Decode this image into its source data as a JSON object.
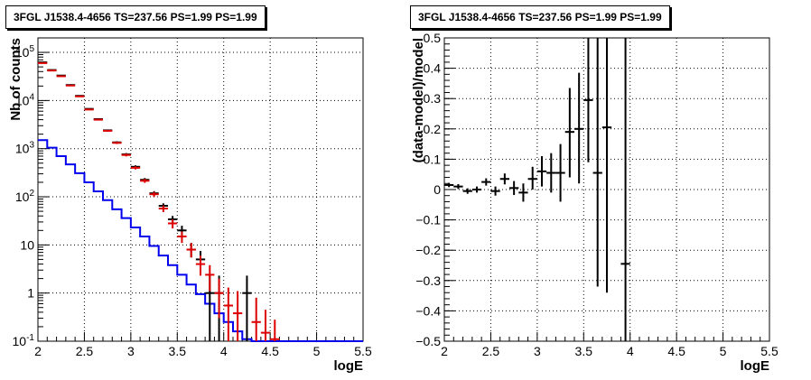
{
  "chart_data": [
    {
      "type": "histogram",
      "title": "3FGL J1538.4-4656 TS=237.56 PS=1.99 PS=1.99",
      "xlabel": "logE",
      "ylabel": "Nb of counts",
      "xlim": [
        2,
        5.5
      ],
      "ylim": [
        0.1,
        200000
      ],
      "yscale": "log",
      "grid": true,
      "xticks": [
        "2",
        "2.5",
        "3",
        "3.5",
        "4",
        "4.5",
        "5",
        "5.5"
      ],
      "yticks": [
        {
          "v": 0.1,
          "l": "10",
          "e": "-1"
        },
        {
          "v": 1,
          "l": "1",
          "e": ""
        },
        {
          "v": 10,
          "l": "10",
          "e": ""
        },
        {
          "v": 100,
          "l": "10",
          "e": "2"
        },
        {
          "v": 1000,
          "l": "10",
          "e": "3"
        },
        {
          "v": 10000,
          "l": "10",
          "e": "4"
        },
        {
          "v": 100000,
          "l": "10",
          "e": "5"
        }
      ],
      "bin_edges": [
        2.0,
        2.1,
        2.2,
        2.3,
        2.4,
        2.5,
        2.6,
        2.7,
        2.8,
        2.9,
        3.0,
        3.1,
        3.2,
        3.3,
        3.4,
        3.5,
        3.6,
        3.7,
        3.8,
        3.9,
        4.0,
        4.1,
        4.2,
        4.3,
        4.4,
        4.5,
        4.6,
        4.7,
        4.8,
        4.9,
        5.0,
        5.1,
        5.2,
        5.3,
        5.4,
        5.5
      ],
      "series": [
        {
          "color": "#0000ee",
          "style": "step",
          "values": [
            1500,
            1050,
            700,
            470,
            310,
            200,
            130,
            85,
            55,
            36,
            23,
            15,
            9.5,
            6,
            3.8,
            2.4,
            1.5,
            0.95,
            0.6,
            0.38,
            0.25,
            0.16,
            0.11,
            0.1,
            0.1,
            0.1,
            0.1,
            0.1,
            0.1,
            0.1,
            0.1,
            0.1,
            0.1,
            0.1,
            0.1
          ]
        },
        {
          "color": "#000000",
          "style": "errorbar",
          "points": [
            {
              "x": 2.05,
              "y": 62000,
              "lo": 61000,
              "hi": 63000
            },
            {
              "x": 2.15,
              "y": 43000,
              "lo": 42200,
              "hi": 43800
            },
            {
              "x": 2.25,
              "y": 33000,
              "lo": 32300,
              "hi": 33700
            },
            {
              "x": 2.35,
              "y": 21000,
              "lo": 20500,
              "hi": 21500
            },
            {
              "x": 2.45,
              "y": 12500,
              "lo": 12200,
              "hi": 12800
            },
            {
              "x": 2.55,
              "y": 6700,
              "lo": 6500,
              "hi": 6900
            },
            {
              "x": 2.65,
              "y": 4100,
              "lo": 3950,
              "hi": 4250
            },
            {
              "x": 2.75,
              "y": 2400,
              "lo": 2300,
              "hi": 2500
            },
            {
              "x": 2.85,
              "y": 1350,
              "lo": 1280,
              "hi": 1420
            },
            {
              "x": 2.95,
              "y": 760,
              "lo": 710,
              "hi": 810
            },
            {
              "x": 3.05,
              "y": 420,
              "lo": 390,
              "hi": 450
            },
            {
              "x": 3.15,
              "y": 225,
              "lo": 205,
              "hi": 245
            },
            {
              "x": 3.25,
              "y": 118,
              "lo": 105,
              "hi": 131
            },
            {
              "x": 3.35,
              "y": 65,
              "lo": 57,
              "hi": 73
            },
            {
              "x": 3.45,
              "y": 34,
              "lo": 28,
              "hi": 40
            },
            {
              "x": 3.55,
              "y": 20,
              "lo": 16,
              "hi": 25
            },
            {
              "x": 3.65,
              "y": 8,
              "lo": 5.5,
              "hi": 11
            },
            {
              "x": 3.75,
              "y": 5,
              "lo": 3,
              "hi": 7.5
            },
            {
              "x": 3.85,
              "y": 1,
              "lo": 0.1,
              "hi": 2.3
            },
            {
              "x": 3.95,
              "y": 1,
              "lo": 0.1,
              "hi": 2.3
            },
            {
              "x": 4.25,
              "y": 1,
              "lo": 0.1,
              "hi": 2.3
            }
          ]
        },
        {
          "color": "#dd0000",
          "style": "errorbar",
          "points": [
            {
              "x": 2.05,
              "y": 60000,
              "lo": 59000,
              "hi": 61000
            },
            {
              "x": 2.15,
              "y": 42000,
              "lo": 41200,
              "hi": 42800
            },
            {
              "x": 2.25,
              "y": 32000,
              "lo": 31300,
              "hi": 32700
            },
            {
              "x": 2.35,
              "y": 20500,
              "lo": 20000,
              "hi": 21000
            },
            {
              "x": 2.45,
              "y": 12200,
              "lo": 11900,
              "hi": 12500
            },
            {
              "x": 2.55,
              "y": 6500,
              "lo": 6300,
              "hi": 6700
            },
            {
              "x": 2.65,
              "y": 4000,
              "lo": 3850,
              "hi": 4150
            },
            {
              "x": 2.75,
              "y": 2350,
              "lo": 2250,
              "hi": 2450
            },
            {
              "x": 2.85,
              "y": 1320,
              "lo": 1250,
              "hi": 1390
            },
            {
              "x": 2.95,
              "y": 740,
              "lo": 690,
              "hi": 790
            },
            {
              "x": 3.05,
              "y": 400,
              "lo": 370,
              "hi": 430
            },
            {
              "x": 3.15,
              "y": 215,
              "lo": 195,
              "hi": 235
            },
            {
              "x": 3.25,
              "y": 113,
              "lo": 100,
              "hi": 126
            },
            {
              "x": 3.35,
              "y": 57,
              "lo": 48,
              "hi": 66
            },
            {
              "x": 3.45,
              "y": 28,
              "lo": 22,
              "hi": 34
            },
            {
              "x": 3.55,
              "y": 15,
              "lo": 11,
              "hi": 19
            },
            {
              "x": 3.65,
              "y": 8,
              "lo": 5.5,
              "hi": 11
            },
            {
              "x": 3.75,
              "y": 4,
              "lo": 2.3,
              "hi": 6
            },
            {
              "x": 3.85,
              "y": 2.4,
              "lo": 1.1,
              "hi": 3.8
            },
            {
              "x": 3.95,
              "y": 1,
              "lo": 0.3,
              "hi": 2
            },
            {
              "x": 4.05,
              "y": 0.55,
              "lo": 0.1,
              "hi": 1.3
            },
            {
              "x": 4.15,
              "y": 0.38,
              "lo": 0.1,
              "hi": 1.1
            },
            {
              "x": 4.35,
              "y": 0.25,
              "lo": 0.1,
              "hi": 0.8
            },
            {
              "x": 4.45,
              "y": 0.15,
              "lo": 0.1,
              "hi": 0.45
            },
            {
              "x": 4.55,
              "y": 0.11,
              "lo": 0.1,
              "hi": 0.28
            }
          ]
        }
      ]
    },
    {
      "type": "scatter",
      "title": "3FGL J1538.4-4656 TS=237.56 PS=1.99 PS=1.99",
      "xlabel": "logE",
      "ylabel": "(data-model)/model",
      "xlim": [
        2,
        5.5
      ],
      "ylim": [
        -0.5,
        0.5
      ],
      "grid": true,
      "xticks": [
        "2",
        "2.5",
        "3",
        "3.5",
        "4",
        "4.5",
        "5",
        "5.5"
      ],
      "yticks": [
        "−0.5",
        "−0.4",
        "−0.3",
        "−0.2",
        "−0.1",
        "0",
        "0.1",
        "0.2",
        "0.3",
        "0.4",
        "0.5"
      ],
      "series": [
        {
          "color": "#000000",
          "style": "errorbar",
          "points": [
            {
              "x": 2.05,
              "y": 0.015,
              "lo": 0.008,
              "hi": 0.022
            },
            {
              "x": 2.15,
              "y": 0.01,
              "lo": 0.002,
              "hi": 0.018
            },
            {
              "x": 2.25,
              "y": -0.005,
              "lo": -0.014,
              "hi": 0.004
            },
            {
              "x": 2.35,
              "y": 0.0,
              "lo": -0.01,
              "hi": 0.01
            },
            {
              "x": 2.45,
              "y": 0.025,
              "lo": 0.013,
              "hi": 0.037
            },
            {
              "x": 2.55,
              "y": -0.005,
              "lo": -0.02,
              "hi": 0.01
            },
            {
              "x": 2.65,
              "y": 0.035,
              "lo": 0.017,
              "hi": 0.053
            },
            {
              "x": 2.75,
              "y": 0.005,
              "lo": -0.018,
              "hi": 0.028
            },
            {
              "x": 2.85,
              "y": -0.01,
              "lo": -0.04,
              "hi": 0.02
            },
            {
              "x": 2.95,
              "y": 0.035,
              "lo": 0.0,
              "hi": 0.075
            },
            {
              "x": 3.05,
              "y": 0.06,
              "lo": 0.01,
              "hi": 0.11
            },
            {
              "x": 3.15,
              "y": 0.055,
              "lo": -0.01,
              "hi": 0.12
            },
            {
              "x": 3.25,
              "y": 0.055,
              "lo": -0.04,
              "hi": 0.15
            },
            {
              "x": 3.35,
              "y": 0.19,
              "lo": 0.04,
              "hi": 0.335
            },
            {
              "x": 3.45,
              "y": 0.2,
              "lo": 0.02,
              "hi": 0.385
            },
            {
              "x": 3.55,
              "y": 0.295,
              "lo": 0.09,
              "hi": 0.5
            },
            {
              "x": 3.65,
              "y": 0.055,
              "lo": -0.32,
              "hi": 0.5
            },
            {
              "x": 3.75,
              "y": 0.205,
              "lo": -0.34,
              "hi": 0.5
            },
            {
              "x": 3.95,
              "y": -0.245,
              "lo": -0.5,
              "hi": 0.5
            }
          ]
        }
      ]
    }
  ]
}
